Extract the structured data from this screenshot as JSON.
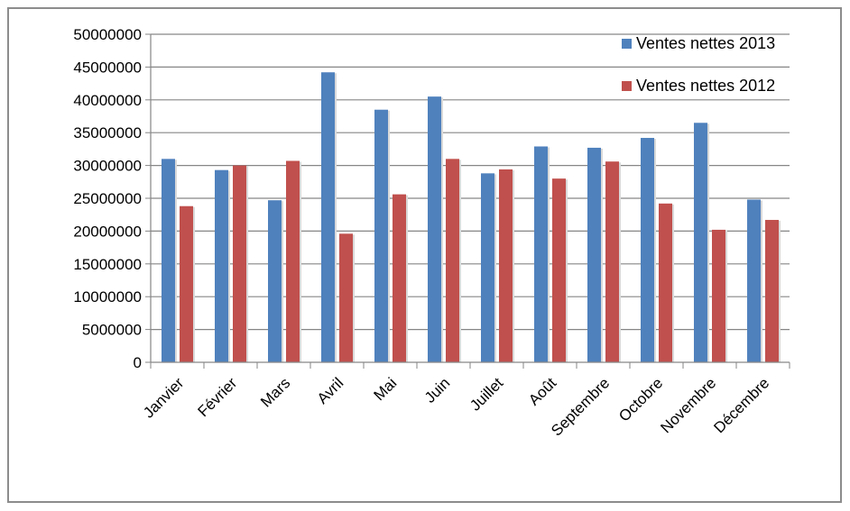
{
  "chart_data": {
    "type": "bar",
    "title": "",
    "xlabel": "",
    "ylabel": "",
    "ylim": [
      0,
      50000000
    ],
    "y_ticks": [
      "0",
      "5000000",
      "10000000",
      "15000000",
      "20000000",
      "25000000",
      "30000000",
      "35000000",
      "40000000",
      "45000000",
      "50000000"
    ],
    "grid": true,
    "legend_position": "top-right",
    "categories": [
      "Janvier",
      "Février",
      "Mars",
      "Avril",
      "Mai",
      "Juin",
      "Juillet",
      "Août",
      "Septembre",
      "Octobre",
      "Novembre",
      "Décembre"
    ],
    "series": [
      {
        "name": "Ventes nettes 2013",
        "color": "#4f81bd",
        "values": [
          31000000,
          29300000,
          24700000,
          44200000,
          38500000,
          40500000,
          28800000,
          32900000,
          32700000,
          34200000,
          36500000,
          24800000
        ]
      },
      {
        "name": "Ventes nettes 2012",
        "color": "#c0504d",
        "values": [
          23800000,
          30000000,
          30700000,
          19600000,
          25600000,
          31000000,
          29400000,
          28000000,
          30600000,
          24200000,
          20200000,
          21700000
        ]
      }
    ]
  }
}
